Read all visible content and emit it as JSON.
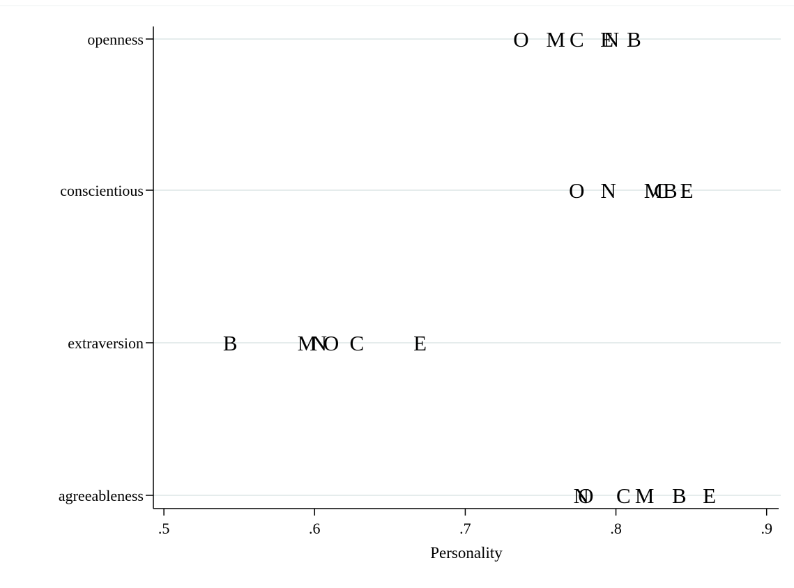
{
  "chart_data": {
    "type": "scatter",
    "xlabel": "Personality",
    "ylabel": "",
    "xlim": [
      0.493,
      0.908
    ],
    "x_ticks": [
      {
        "value": 0.5,
        "label": ".5"
      },
      {
        "value": 0.6,
        "label": ".6"
      },
      {
        "value": 0.7,
        "label": ".7"
      },
      {
        "value": 0.8,
        "label": ".8"
      },
      {
        "value": 0.9,
        "label": ".9"
      }
    ],
    "categories": [
      "openness",
      "conscientious",
      "extraversion",
      "agreeableness"
    ],
    "grid": true,
    "legend": "none",
    "colors": {
      "grid": "#e5ecec",
      "axis": "#000000",
      "marker": "#000000"
    },
    "points": [
      {
        "category": "openness",
        "label": "O",
        "x": 0.737
      },
      {
        "category": "openness",
        "label": "M",
        "x": 0.76
      },
      {
        "category": "openness",
        "label": "C",
        "x": 0.774
      },
      {
        "category": "openness",
        "label": "E",
        "x": 0.794
      },
      {
        "category": "openness",
        "label": "N",
        "x": 0.797
      },
      {
        "category": "openness",
        "label": "B",
        "x": 0.812
      },
      {
        "category": "conscientious",
        "label": "O",
        "x": 0.774
      },
      {
        "category": "conscientious",
        "label": "N",
        "x": 0.795
      },
      {
        "category": "conscientious",
        "label": "M",
        "x": 0.825
      },
      {
        "category": "conscientious",
        "label": "C",
        "x": 0.83
      },
      {
        "category": "conscientious",
        "label": "B",
        "x": 0.836
      },
      {
        "category": "conscientious",
        "label": "E",
        "x": 0.847
      },
      {
        "category": "extraversion",
        "label": "B",
        "x": 0.544
      },
      {
        "category": "extraversion",
        "label": "M",
        "x": 0.595
      },
      {
        "category": "extraversion",
        "label": "N",
        "x": 0.603
      },
      {
        "category": "extraversion",
        "label": "O",
        "x": 0.611
      },
      {
        "category": "extraversion",
        "label": "C",
        "x": 0.628
      },
      {
        "category": "extraversion",
        "label": "E",
        "x": 0.67
      },
      {
        "category": "agreeableness",
        "label": "N",
        "x": 0.777
      },
      {
        "category": "agreeableness",
        "label": "O",
        "x": 0.78
      },
      {
        "category": "agreeableness",
        "label": "C",
        "x": 0.805
      },
      {
        "category": "agreeableness",
        "label": "M",
        "x": 0.819
      },
      {
        "category": "agreeableness",
        "label": "B",
        "x": 0.842
      },
      {
        "category": "agreeableness",
        "label": "E",
        "x": 0.862
      }
    ]
  }
}
